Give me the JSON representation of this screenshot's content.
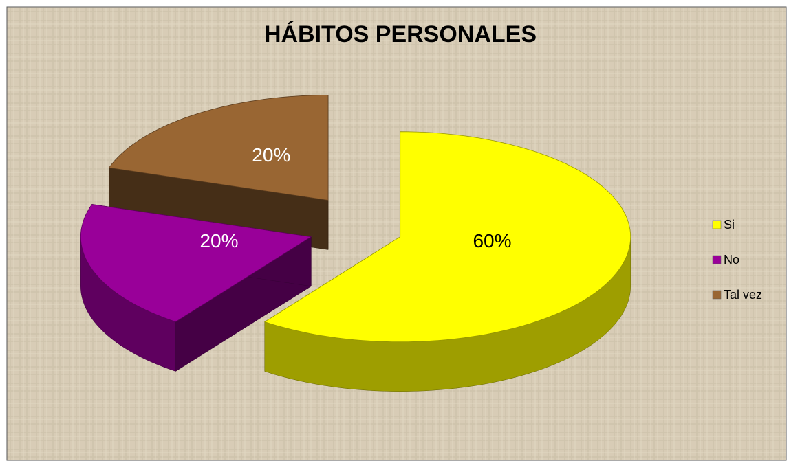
{
  "chart_data": {
    "type": "pie",
    "title": "HÁBITOS PERSONALES",
    "categories": [
      "Si",
      "No",
      "Tal vez"
    ],
    "values": [
      60,
      20,
      20
    ],
    "value_labels": [
      "60%",
      "20%",
      "20%"
    ],
    "colors": [
      "#ffff00",
      "#990099",
      "#996633"
    ],
    "legend": "right"
  }
}
